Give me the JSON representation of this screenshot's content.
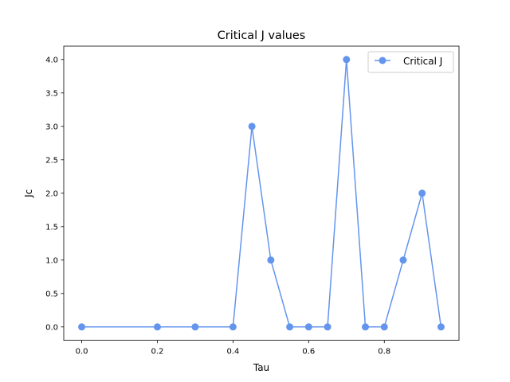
{
  "chart_data": {
    "type": "line",
    "title": "Critical J values",
    "xlabel": "Tau",
    "ylabel": "Jc",
    "xlim": [
      -0.0475,
      0.9975
    ],
    "ylim": [
      -0.2,
      4.2
    ],
    "xticks": [
      0.0,
      0.2,
      0.4,
      0.6,
      0.8
    ],
    "xtick_labels": [
      "0.0",
      "0.2",
      "0.4",
      "0.6",
      "0.8"
    ],
    "yticks": [
      0.0,
      0.5,
      1.0,
      1.5,
      2.0,
      2.5,
      3.0,
      3.5,
      4.0
    ],
    "ytick_labels": [
      "0.0",
      "0.5",
      "1.0",
      "1.5",
      "2.0",
      "2.5",
      "3.0",
      "3.5",
      "4.0"
    ],
    "grid": false,
    "legend_position": "top-right",
    "series": [
      {
        "name": "Critical J",
        "color": "#6495ed",
        "marker": "circle",
        "x": [
          0.0,
          0.2,
          0.3,
          0.4,
          0.45,
          0.5,
          0.55,
          0.6,
          0.65,
          0.7,
          0.75,
          0.8,
          0.85,
          0.9,
          0.95
        ],
        "y": [
          0,
          0,
          0,
          0,
          3,
          1,
          0,
          0,
          0,
          4,
          0,
          0,
          1,
          2,
          0
        ]
      }
    ]
  }
}
